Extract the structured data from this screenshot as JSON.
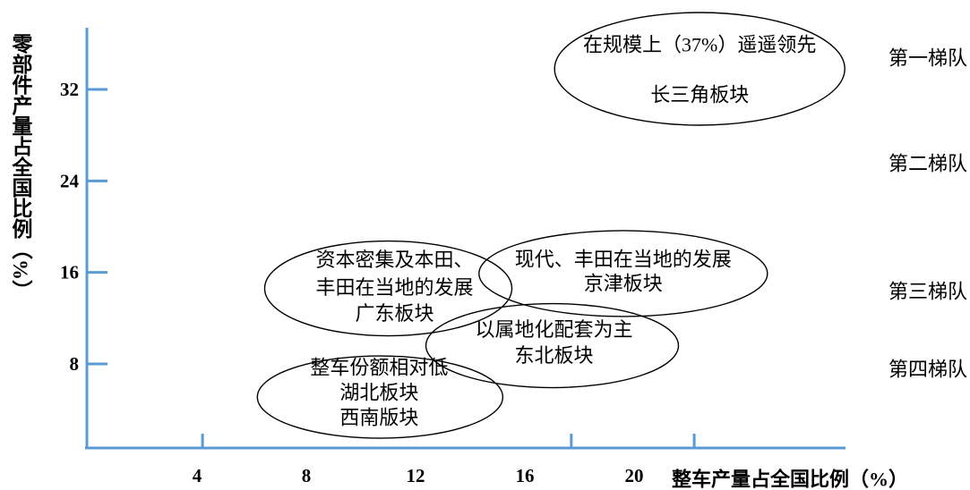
{
  "chart_data": {
    "type": "scatter",
    "xlabel": "整车产量占全国比例（%）",
    "ylabel": "零部件产量占全国比例（%）",
    "x_ticks": [
      4,
      8,
      12,
      16,
      20
    ],
    "y_ticks": [
      8,
      16,
      24,
      32
    ],
    "x_tick_marks": [
      4.2,
      17.7,
      22.2
    ],
    "xlim": [
      0,
      27.7
    ],
    "ylim": [
      0,
      37.4
    ],
    "grid": false,
    "tiers": [
      "第一梯队",
      "第二梯队",
      "第三梯队",
      "第四梯队"
    ],
    "regions": [
      {
        "lines": [
          "在规模上（37%）遥遥领先",
          "长三角板块"
        ],
        "x": 22.4,
        "y": 33.8
      },
      {
        "lines": [
          "资本密集及本田、",
          "丰田在当地的发展",
          "广东板块"
        ],
        "x": 11.0,
        "y": 14.6
      },
      {
        "lines": [
          "现代、丰田在当地的发展",
          "京津板块"
        ],
        "x": 19.6,
        "y": 15.9
      },
      {
        "lines": [
          "以属地化配套为主",
          "东北板块"
        ],
        "x": 17.0,
        "y": 9.6
      },
      {
        "lines": [
          "整车份额相对低",
          "湖北板块",
          "西南版块"
        ],
        "x": 10.7,
        "y": 5.1
      }
    ]
  },
  "colors": {
    "axis": "#5b9bd5",
    "ellipse_stroke": "#000000",
    "text": "#000000"
  }
}
